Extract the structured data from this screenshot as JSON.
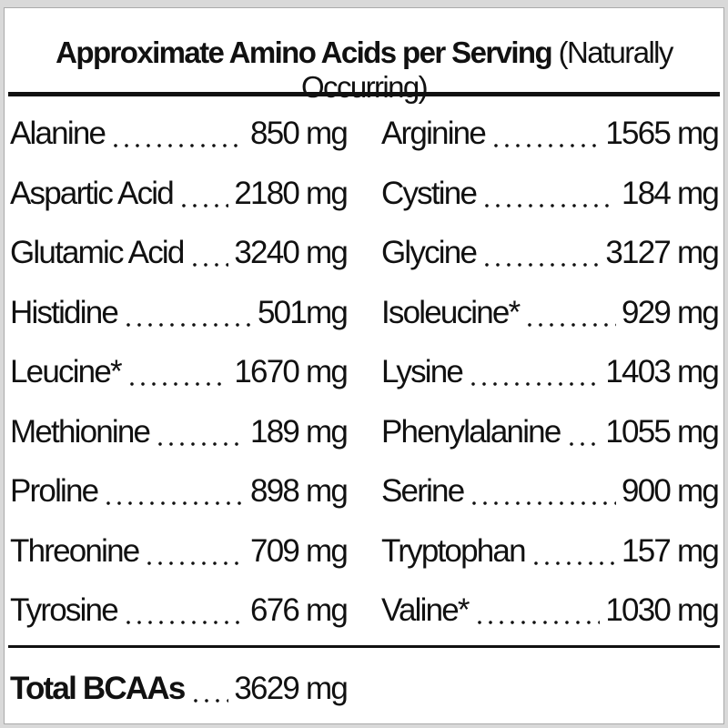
{
  "header": {
    "title": "Approximate Amino Acids per Serving",
    "subtitle": "(Naturally Occurring)"
  },
  "table": {
    "rows": [
      [
        {
          "name": "Alanine",
          "amount": "850 mg"
        },
        {
          "name": "Arginine",
          "amount": "1565 mg"
        }
      ],
      [
        {
          "name": "Aspartic Acid",
          "amount": "2180 mg"
        },
        {
          "name": "Cystine",
          "amount": "184 mg"
        }
      ],
      [
        {
          "name": "Glutamic Acid",
          "amount": "3240 mg"
        },
        {
          "name": "Glycine",
          "amount": "3127 mg"
        }
      ],
      [
        {
          "name": "Histidine",
          "amount": "501mg"
        },
        {
          "name": "Isoleucine*",
          "amount": "929 mg"
        }
      ],
      [
        {
          "name": "Leucine*",
          "amount": "1670 mg"
        },
        {
          "name": "Lysine",
          "amount": "1403 mg"
        }
      ],
      [
        {
          "name": "Methionine",
          "amount": "189 mg"
        },
        {
          "name": "Phenylalanine",
          "amount": "1055 mg"
        }
      ],
      [
        {
          "name": "Proline",
          "amount": "898 mg"
        },
        {
          "name": "Serine",
          "amount": "900 mg"
        }
      ],
      [
        {
          "name": "Threonine",
          "amount": "709 mg"
        },
        {
          "name": "Tryptophan",
          "amount": "157 mg"
        }
      ],
      [
        {
          "name": "Tyrosine",
          "amount": "676 mg"
        },
        {
          "name": "Valine*",
          "amount": "1030 mg"
        }
      ]
    ]
  },
  "total": {
    "name": "Total BCAAs",
    "amount": "3629 mg"
  }
}
